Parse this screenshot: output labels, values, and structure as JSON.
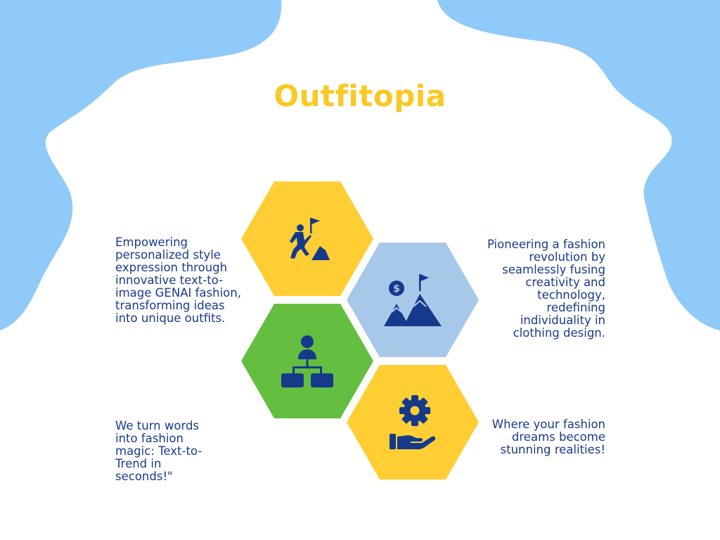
{
  "title": "Outfitopia",
  "colors": {
    "background": "#ffffff",
    "blob": "#90CAF9",
    "title": "#F9C924",
    "text": "#1A3A8C",
    "icon": "#153A8C",
    "hex_yellow": "#FFCE34",
    "hex_blue": "#A7C8E8",
    "hex_green": "#64BE40"
  },
  "hexagons": [
    {
      "id": "top-left",
      "icon": "climber-flag-icon",
      "color": "#FFCE34"
    },
    {
      "id": "middle-right",
      "icon": "mountain-goal-icon",
      "color": "#A7C8E8"
    },
    {
      "id": "middle-left",
      "icon": "hierarchy-icon",
      "color": "#64BE40"
    },
    {
      "id": "bottom-right",
      "icon": "gear-hand-icon",
      "color": "#FFCE34"
    }
  ],
  "blurbs": {
    "top_left": "Empowering personalized style expression through innovative text-to-image GENAI fashion, transforming ideas into unique outfits.",
    "top_right": "Pioneering a fashion revolution by seamlessly fusing creativity and technology, redefining individuality in clothing design.",
    "bottom_left": "We turn words into fashion magic: Text-to-Trend in seconds!\"",
    "bottom_right": "Where your fashion dreams become stunning realities!"
  }
}
